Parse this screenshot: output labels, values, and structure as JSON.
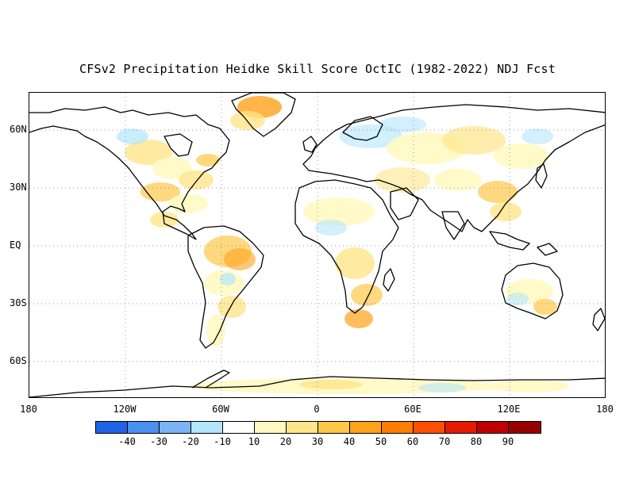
{
  "title": "CFSv2 Precipitation Heidke Skill Score OctIC (1982-2022) NDJ Fcst",
  "lat_labels": [
    "60N",
    "30N",
    "EQ",
    "30S",
    "60S"
  ],
  "lon_labels": [
    "180",
    "120W",
    "60W",
    "0",
    "60E",
    "120E",
    "180"
  ],
  "colorbar": {
    "colors": [
      "#1f63e6",
      "#4a90f0",
      "#7bb4f5",
      "#b4e6fb",
      "#ffffff",
      "#fff9c2",
      "#ffe58a",
      "#ffc848",
      "#ffa31a",
      "#ff7d00",
      "#ff4f00",
      "#e61a00",
      "#c00000",
      "#960000"
    ],
    "labels": [
      "-40",
      "-30",
      "-20",
      "-10",
      "10",
      "20",
      "30",
      "40",
      "50",
      "60",
      "70",
      "80",
      "90"
    ]
  },
  "colors": {
    "coast": "#000000",
    "grid": "#999999"
  }
}
